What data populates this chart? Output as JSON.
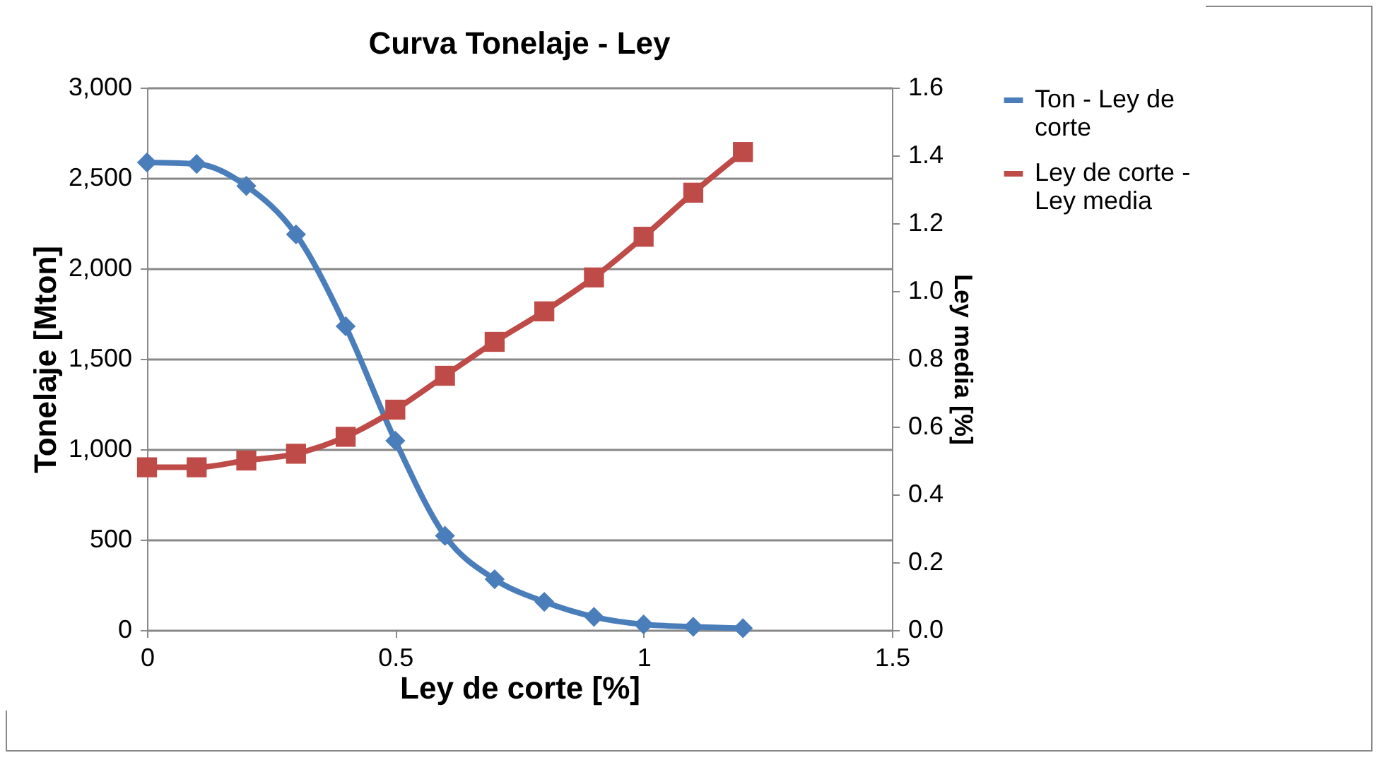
{
  "chart_data": {
    "type": "line",
    "title": "Curva Tonelaje - Ley",
    "xlabel": "Ley de corte [%]",
    "ylabel": "Tonelaje [Mton]",
    "y2label": "Ley media [%]",
    "x": [
      0,
      0.1,
      0.2,
      0.3,
      0.4,
      0.5,
      0.6,
      0.7,
      0.8,
      0.9,
      1.0,
      1.1,
      1.2
    ],
    "series": [
      {
        "name": "Ton - Ley de corte",
        "color": "#4a7ebb",
        "marker": "diamond",
        "values": [
          2586,
          2578,
          2456,
          2188,
          1680,
          1047,
          521,
          281,
          156,
          73,
          31,
          18,
          10
        ]
      },
      {
        "name": "Ley de corte - Ley media",
        "color": "#be4b48",
        "marker": "square",
        "axis": "y2",
        "values": [
          0.48,
          0.48,
          0.5,
          0.52,
          0.57,
          0.65,
          0.75,
          0.85,
          0.94,
          1.04,
          1.16,
          1.29,
          1.41
        ]
      }
    ],
    "xlim": [
      0,
      1.5
    ],
    "xticks": [
      0,
      0.5,
      1,
      1.5
    ],
    "ylim": [
      0,
      3000
    ],
    "yticks": [
      {
        "value": 0,
        "label": "0"
      },
      {
        "value": 500,
        "label": "500"
      },
      {
        "value": 1000,
        "label": "1,000"
      },
      {
        "value": 1500,
        "label": "1,500"
      },
      {
        "value": 2000,
        "label": "2,000"
      },
      {
        "value": 2500,
        "label": "2,500"
      },
      {
        "value": 3000,
        "label": "3,000"
      }
    ],
    "y2lim": [
      0,
      1.6
    ],
    "y2ticks": [
      {
        "value": 0,
        "label": "0.0"
      },
      {
        "value": 0.2,
        "label": "0.2"
      },
      {
        "value": 0.4,
        "label": "0.4"
      },
      {
        "value": 0.6,
        "label": "0.6"
      },
      {
        "value": 0.8,
        "label": "0.8"
      },
      {
        "value": 1,
        "label": "1.0"
      },
      {
        "value": 1.2,
        "label": "1.2"
      },
      {
        "value": 1.4,
        "label": "1.4"
      },
      {
        "value": 1.6,
        "label": "1.6"
      }
    ],
    "grid": "y",
    "legend": "right",
    "line_style": "solid"
  }
}
